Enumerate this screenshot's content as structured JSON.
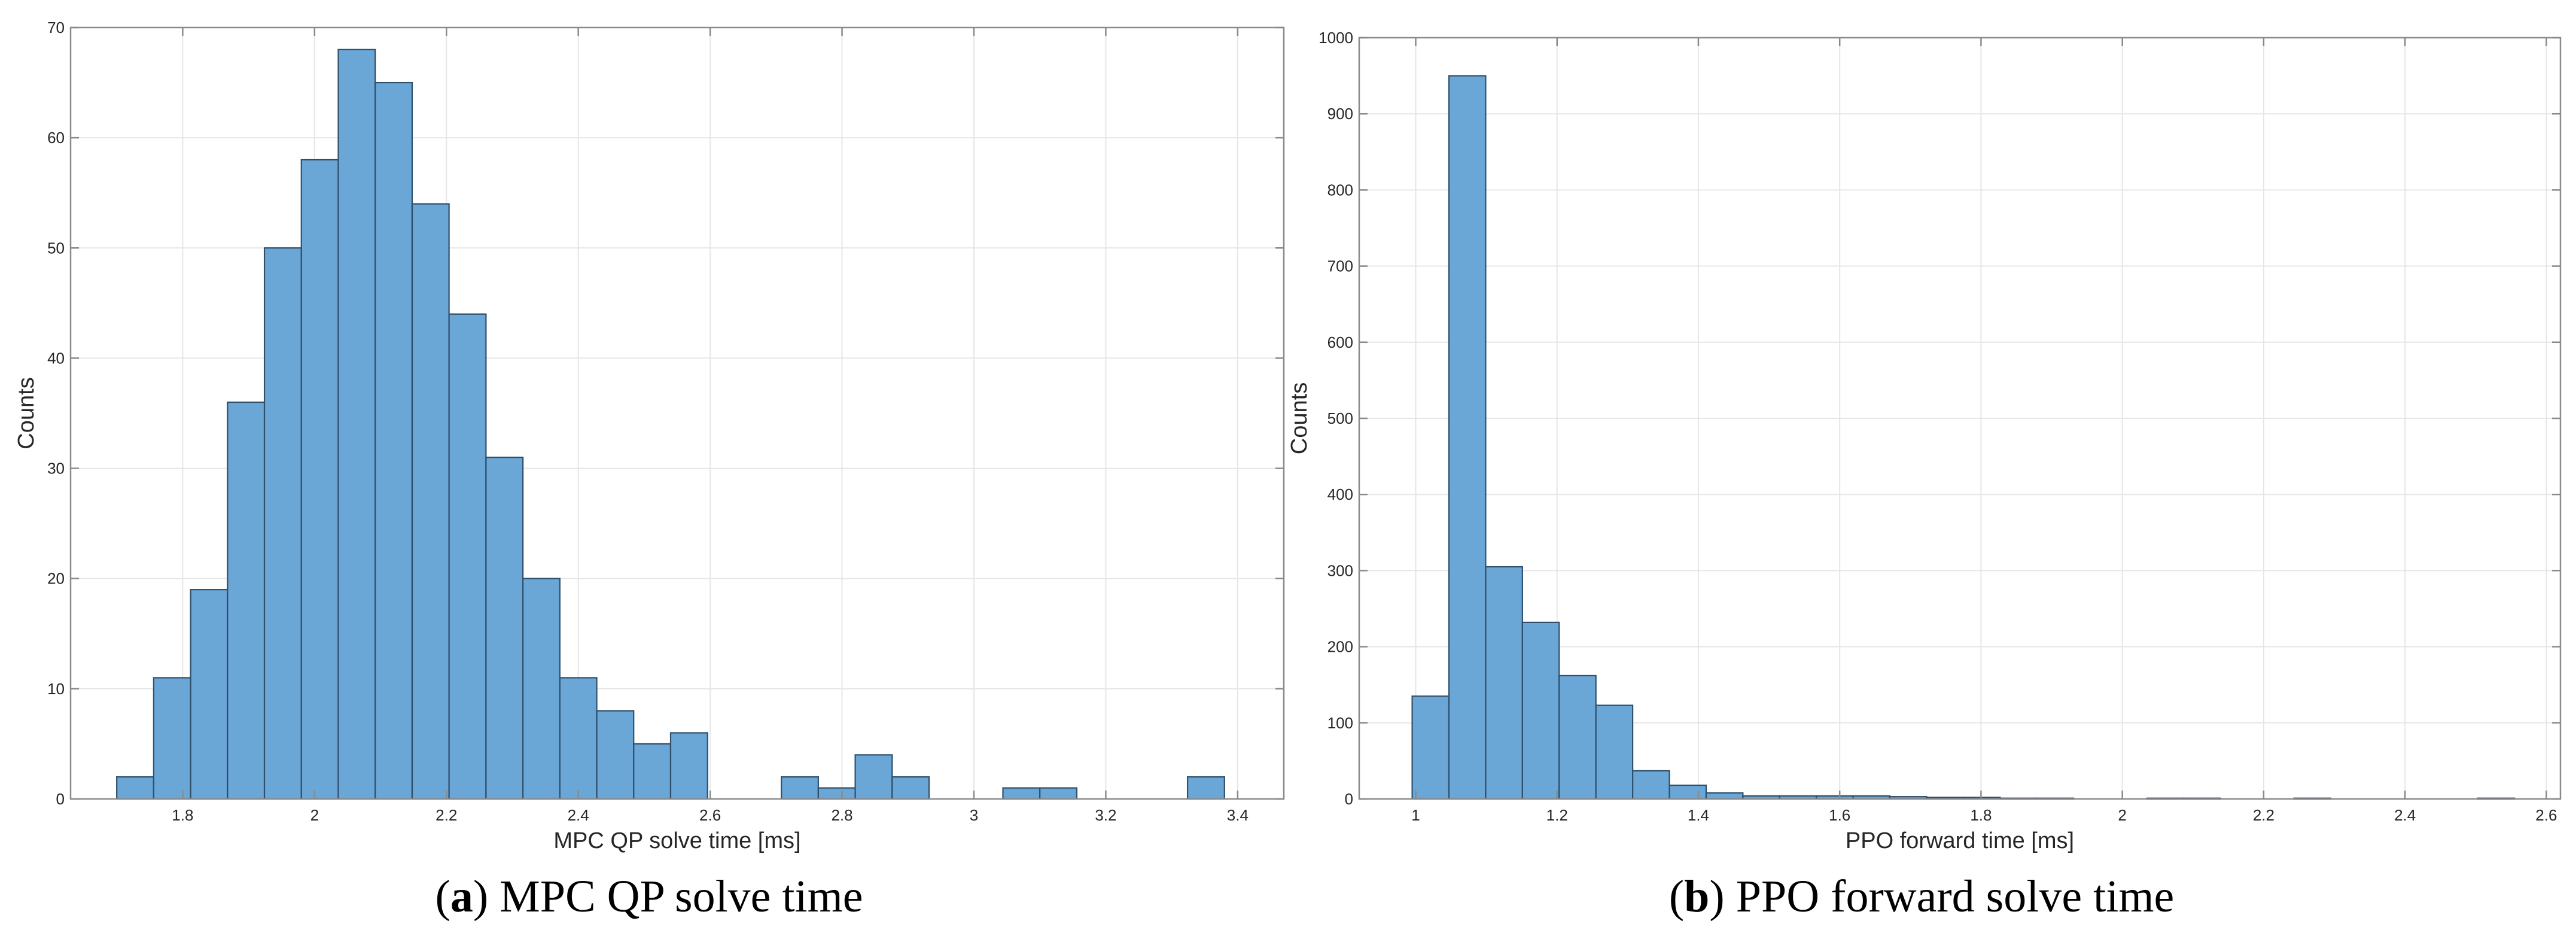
{
  "colors": {
    "bar_fill": "#6aa6d6",
    "bar_edge": "#2f4f6b",
    "grid": "#e6e6e6",
    "axis": "#8a8a8a",
    "text": "#262626"
  },
  "captions": [
    {
      "letter": "a",
      "open": "(",
      "close": ")",
      "text": " MPC QP solve time"
    },
    {
      "letter": "b",
      "open": "(",
      "close": ")",
      "text": " PPO forward solve time"
    }
  ],
  "chart_data": [
    {
      "type": "histogram",
      "xlabel": "MPC QP solve time [ms]",
      "ylabel": "Counts",
      "xlim": [
        1.63,
        3.47
      ],
      "ylim": [
        0,
        70
      ],
      "grid": true,
      "xticks": [
        1.8,
        2,
        2.2,
        2.4,
        2.6,
        2.8,
        3,
        3.2,
        3.4
      ],
      "xtick_labels": [
        "1.8",
        "2",
        "2.2",
        "2.4",
        "2.6",
        "2.8",
        "3",
        "3.2",
        "3.4"
      ],
      "yticks": [
        0,
        10,
        20,
        30,
        40,
        50,
        60,
        70
      ],
      "ytick_labels": [
        "0",
        "10",
        "20",
        "30",
        "40",
        "50",
        "60",
        "70"
      ],
      "bin_start": 1.7,
      "bin_width": 0.056,
      "counts": [
        2,
        11,
        19,
        36,
        50,
        58,
        68,
        65,
        54,
        44,
        31,
        20,
        11,
        8,
        5,
        6,
        0,
        0,
        2,
        1,
        4,
        2,
        0,
        0,
        1,
        1,
        0,
        0,
        0,
        2
      ]
    },
    {
      "type": "histogram",
      "xlabel": "PPO forward time [ms]",
      "ylabel": "Counts",
      "xlim": [
        0.92,
        2.62
      ],
      "ylim": [
        0,
        1000
      ],
      "grid": true,
      "xticks": [
        1,
        1.2,
        1.4,
        1.6,
        1.8,
        2,
        2.2,
        2.4,
        2.6
      ],
      "xtick_labels": [
        "1",
        "1.2",
        "1.4",
        "1.6",
        "1.8",
        "2",
        "2.2",
        "2.4",
        "2.6"
      ],
      "yticks": [
        0,
        100,
        200,
        300,
        400,
        500,
        600,
        700,
        800,
        900,
        1000
      ],
      "ytick_labels": [
        "0",
        "100",
        "200",
        "300",
        "400",
        "500",
        "600",
        "700",
        "800",
        "900",
        "1000"
      ],
      "bin_start": 0.995,
      "bin_width": 0.052,
      "counts": [
        135,
        950,
        305,
        232,
        162,
        123,
        37,
        18,
        8,
        4,
        4,
        4,
        4,
        3,
        2,
        2,
        1,
        1,
        0,
        0,
        1,
        1,
        0,
        0,
        1,
        0,
        0,
        0,
        0,
        1
      ]
    }
  ]
}
